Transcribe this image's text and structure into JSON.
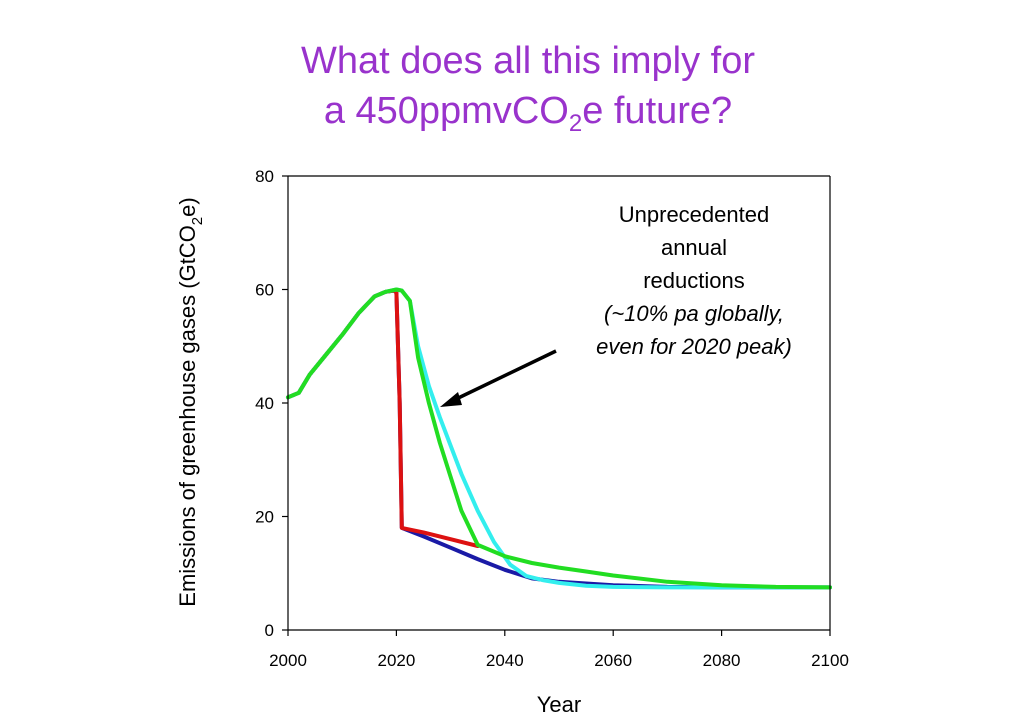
{
  "slide": {
    "title_line1": "What does all this imply for",
    "title_line2_pre": "a 450ppmvCO",
    "title_line2_sub": "2",
    "title_line2_post": "e future?"
  },
  "annotation": {
    "line1": "Unprecedented",
    "line2": "annual",
    "line3": "reductions",
    "line4": "(~10% pa globally,",
    "line5": "even for 2020 peak)"
  },
  "chart_data": {
    "type": "line",
    "xlabel": "Year",
    "ylabel_pre": "Emissions of greenhouse gases (GtCO",
    "ylabel_sub": "2",
    "ylabel_post": "e)",
    "xlim": [
      2000,
      2100
    ],
    "ylim": [
      0,
      80
    ],
    "xticks": [
      2000,
      2020,
      2040,
      2060,
      2080,
      2100
    ],
    "yticks": [
      0,
      20,
      40,
      60,
      80
    ],
    "grid": false,
    "series": [
      {
        "color": "#1a1aa6",
        "x": [
          2000,
          2002,
          2004,
          2007,
          2010,
          2013,
          2016,
          2018,
          2019.5,
          2020,
          2020.6,
          2021,
          2025,
          2030,
          2035,
          2040,
          2043,
          2045,
          2050,
          2060,
          2070,
          2080,
          2090,
          2100
        ],
        "y": [
          41,
          41.8,
          45,
          48.5,
          52,
          55.8,
          58.8,
          59.6,
          59.8,
          59.5,
          40,
          18,
          16.5,
          14.5,
          12.5,
          10.6,
          9.7,
          9.1,
          8.5,
          7.9,
          7.6,
          7.5,
          7.5,
          7.5
        ]
      },
      {
        "color": "#dd1111",
        "x": [
          2000,
          2002,
          2004,
          2007,
          2010,
          2013,
          2016,
          2018,
          2019.5,
          2020,
          2020.6,
          2021,
          2025,
          2030,
          2035
        ],
        "y": [
          41,
          41.8,
          45,
          48.5,
          52,
          55.8,
          58.8,
          59.6,
          59.8,
          59.5,
          40,
          18,
          17.2,
          16,
          14.8
        ]
      },
      {
        "color": "#33eeee",
        "x": [
          2000,
          2002,
          2004,
          2007,
          2010,
          2013,
          2016,
          2018,
          2020,
          2021,
          2022.5,
          2024,
          2026,
          2028,
          2030,
          2032,
          2035,
          2038,
          2041,
          2044,
          2047,
          2050,
          2055,
          2060,
          2070,
          2080,
          2090,
          2100
        ],
        "y": [
          41,
          41.8,
          45,
          48.5,
          52,
          55.8,
          58.8,
          59.6,
          60,
          59.8,
          58,
          50,
          43,
          37.5,
          32.5,
          27.5,
          21,
          15.5,
          11.5,
          9.5,
          8.8,
          8.3,
          7.8,
          7.6,
          7.5,
          7.5,
          7.5,
          7.5
        ]
      },
      {
        "color": "#22dd22",
        "x": [
          2000,
          2002,
          2004,
          2007,
          2010,
          2013,
          2016,
          2018,
          2020,
          2021,
          2022.5,
          2024,
          2026,
          2028,
          2030,
          2032,
          2035,
          2040,
          2045,
          2050,
          2055,
          2060,
          2070,
          2080,
          2090,
          2100
        ],
        "y": [
          41,
          41.8,
          45,
          48.5,
          52,
          55.8,
          58.8,
          59.6,
          60,
          59.8,
          58,
          48,
          40,
          33,
          27,
          21,
          15,
          13,
          11.8,
          11,
          10.3,
          9.6,
          8.5,
          7.9,
          7.6,
          7.5
        ]
      }
    ]
  }
}
